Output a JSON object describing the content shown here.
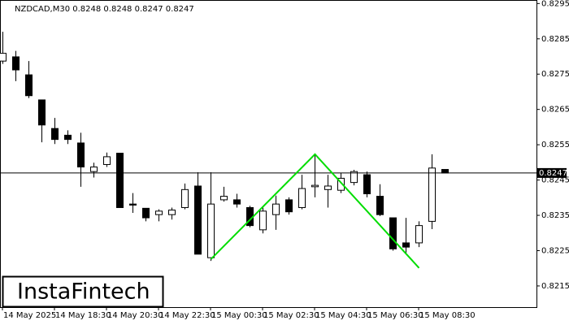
{
  "chart_data": {
    "type": "candlestick",
    "title": "NZDCAD,M30  0.8248 0.8248 0.8247 0.8247",
    "categories": [
      "14 May 2025",
      null,
      null,
      null,
      "14 May 18:30",
      null,
      null,
      null,
      "14 May 20:30",
      null,
      null,
      null,
      "14 May 22:30",
      null,
      null,
      null,
      "15 May 00:30",
      null,
      null,
      null,
      "15 May 02:30",
      null,
      null,
      null,
      "15 May 04:30",
      null,
      null,
      null,
      "15 May 06:30",
      null,
      null,
      null,
      "15 May 08:30",
      null,
      null
    ],
    "open": [
      0.82787,
      0.82799,
      0.82748,
      0.82677,
      0.82596,
      0.82577,
      0.82555,
      0.82474,
      0.82494,
      0.82526,
      0.82382,
      0.8237,
      0.82352,
      0.82352,
      0.82372,
      0.82433,
      0.8223,
      0.82394,
      0.82394,
      0.82372,
      0.82309,
      0.82352,
      0.82394,
      0.82372,
      0.82431,
      0.82423,
      0.82421,
      0.82443,
      0.82465,
      0.82404,
      0.82343,
      0.82272,
      0.82272,
      0.82333,
      0.8248
    ],
    "high": [
      0.8287,
      0.82816,
      0.82787,
      0.82677,
      0.82626,
      0.82591,
      0.82584,
      0.82499,
      0.82528,
      0.82526,
      0.82413,
      0.8237,
      0.82367,
      0.82372,
      0.8244,
      0.82472,
      0.82472,
      0.82431,
      0.82411,
      0.82377,
      0.82372,
      0.82406,
      0.82401,
      0.82465,
      0.82523,
      0.82465,
      0.8247,
      0.82479,
      0.82474,
      0.82438,
      0.82343,
      0.82343,
      0.82333,
      0.82523,
      0.8248
    ],
    "low": [
      0.82779,
      0.8273,
      0.82682,
      0.82557,
      0.82552,
      0.82552,
      0.82431,
      0.82457,
      0.82487,
      0.82372,
      0.82357,
      0.82333,
      0.82333,
      0.82338,
      0.82367,
      0.8224,
      0.82221,
      0.82389,
      0.82372,
      0.82316,
      0.82299,
      0.82309,
      0.82352,
      0.82367,
      0.82401,
      0.82372,
      0.82413,
      0.82435,
      0.82401,
      0.82348,
      0.8225,
      0.8224,
      0.8226,
      0.82311,
      0.8247
    ],
    "close": [
      0.82809,
      0.82762,
      0.82689,
      0.82606,
      0.82565,
      0.82565,
      0.82487,
      0.82487,
      0.82516,
      0.82372,
      0.82379,
      0.82343,
      0.82362,
      0.82365,
      0.82423,
      0.8224,
      0.82382,
      0.82404,
      0.82382,
      0.82321,
      0.82362,
      0.82382,
      0.8236,
      0.82426,
      0.82435,
      0.82433,
      0.82455,
      0.82474,
      0.82411,
      0.82352,
      0.82255,
      0.8226,
      0.82321,
      0.82484,
      0.8247
    ],
    "up_color": "#ffffff",
    "down_color": "#000000",
    "ylim": [
      0.8209,
      0.8296
    ],
    "yticks": [
      0.8295,
      0.8285,
      0.8275,
      0.8265,
      0.8255,
      0.8245,
      0.8235,
      0.8225,
      0.8215
    ],
    "current_price": 0.8247,
    "pattern_line": {
      "color": "#00dd00",
      "x": [
        "15 May 00:30",
        "15 May 04:30",
        "15 May 08:30"
      ],
      "values": [
        0.82226,
        0.82523,
        0.82201
      ]
    },
    "watermark": "InstaFintech"
  }
}
